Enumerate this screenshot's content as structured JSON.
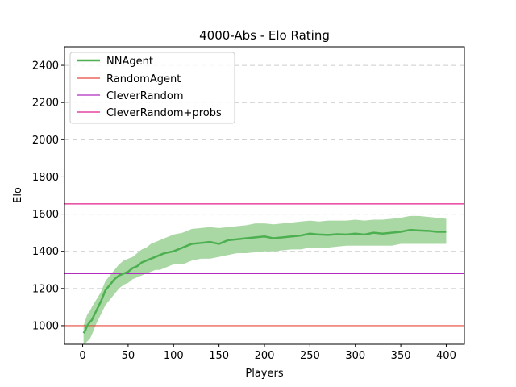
{
  "chart_data": {
    "type": "line",
    "title": "4000-Abs - Elo Rating",
    "xlabel": "Players",
    "ylabel": "Elo",
    "xlim": [
      -20,
      420
    ],
    "ylim": [
      900,
      2500
    ],
    "xticks": [
      0,
      50,
      100,
      150,
      200,
      250,
      300,
      350,
      400
    ],
    "yticks": [
      1000,
      1200,
      1400,
      1600,
      1800,
      2000,
      2200,
      2400
    ],
    "grid": "horizontal dashed",
    "legend_position": "top-left",
    "series": [
      {
        "name": "NNAgent",
        "color": "#4caf50",
        "band_color": "#a5d6a0",
        "x": [
          1,
          3,
          5,
          8,
          10,
          15,
          20,
          25,
          30,
          35,
          40,
          45,
          50,
          55,
          60,
          65,
          70,
          75,
          80,
          85,
          90,
          95,
          100,
          110,
          120,
          130,
          140,
          150,
          160,
          170,
          180,
          190,
          200,
          210,
          220,
          230,
          240,
          250,
          260,
          270,
          280,
          290,
          300,
          310,
          320,
          330,
          340,
          350,
          360,
          370,
          380,
          390,
          400
        ],
        "y": [
          960,
          975,
          1000,
          1020,
          1030,
          1080,
          1130,
          1190,
          1220,
          1250,
          1270,
          1280,
          1290,
          1310,
          1320,
          1340,
          1350,
          1360,
          1370,
          1380,
          1390,
          1395,
          1400,
          1420,
          1440,
          1445,
          1450,
          1440,
          1460,
          1465,
          1470,
          1475,
          1480,
          1470,
          1475,
          1480,
          1485,
          1495,
          1490,
          1488,
          1492,
          1490,
          1495,
          1490,
          1500,
          1495,
          1500,
          1505,
          1515,
          1512,
          1510,
          1505,
          1505
        ],
        "lower": [
          900,
          905,
          915,
          930,
          950,
          1010,
          1060,
          1110,
          1140,
          1170,
          1200,
          1220,
          1230,
          1250,
          1260,
          1270,
          1280,
          1290,
          1300,
          1300,
          1310,
          1320,
          1330,
          1330,
          1350,
          1360,
          1360,
          1370,
          1380,
          1390,
          1390,
          1395,
          1400,
          1400,
          1405,
          1410,
          1410,
          1420,
          1420,
          1420,
          1425,
          1430,
          1430,
          1430,
          1430,
          1430,
          1430,
          1440,
          1440,
          1440,
          1440,
          1440,
          1440
        ],
        "upper": [
          1000,
          1030,
          1060,
          1080,
          1100,
          1140,
          1180,
          1240,
          1270,
          1300,
          1330,
          1350,
          1360,
          1370,
          1390,
          1410,
          1420,
          1440,
          1450,
          1460,
          1470,
          1480,
          1490,
          1500,
          1520,
          1525,
          1530,
          1525,
          1530,
          1535,
          1540,
          1550,
          1550,
          1545,
          1550,
          1555,
          1560,
          1565,
          1560,
          1565,
          1565,
          1565,
          1570,
          1565,
          1570,
          1570,
          1575,
          1580,
          1590,
          1590,
          1585,
          1580,
          1575
        ]
      },
      {
        "name": "RandomAgent",
        "color": "#e8473f",
        "constant": 1000
      },
      {
        "name": "CleverRandom",
        "color": "#b22bc0",
        "constant": 1280
      },
      {
        "name": "CleverRandom+probs",
        "color": "#e0208a",
        "constant": 1655
      }
    ]
  }
}
